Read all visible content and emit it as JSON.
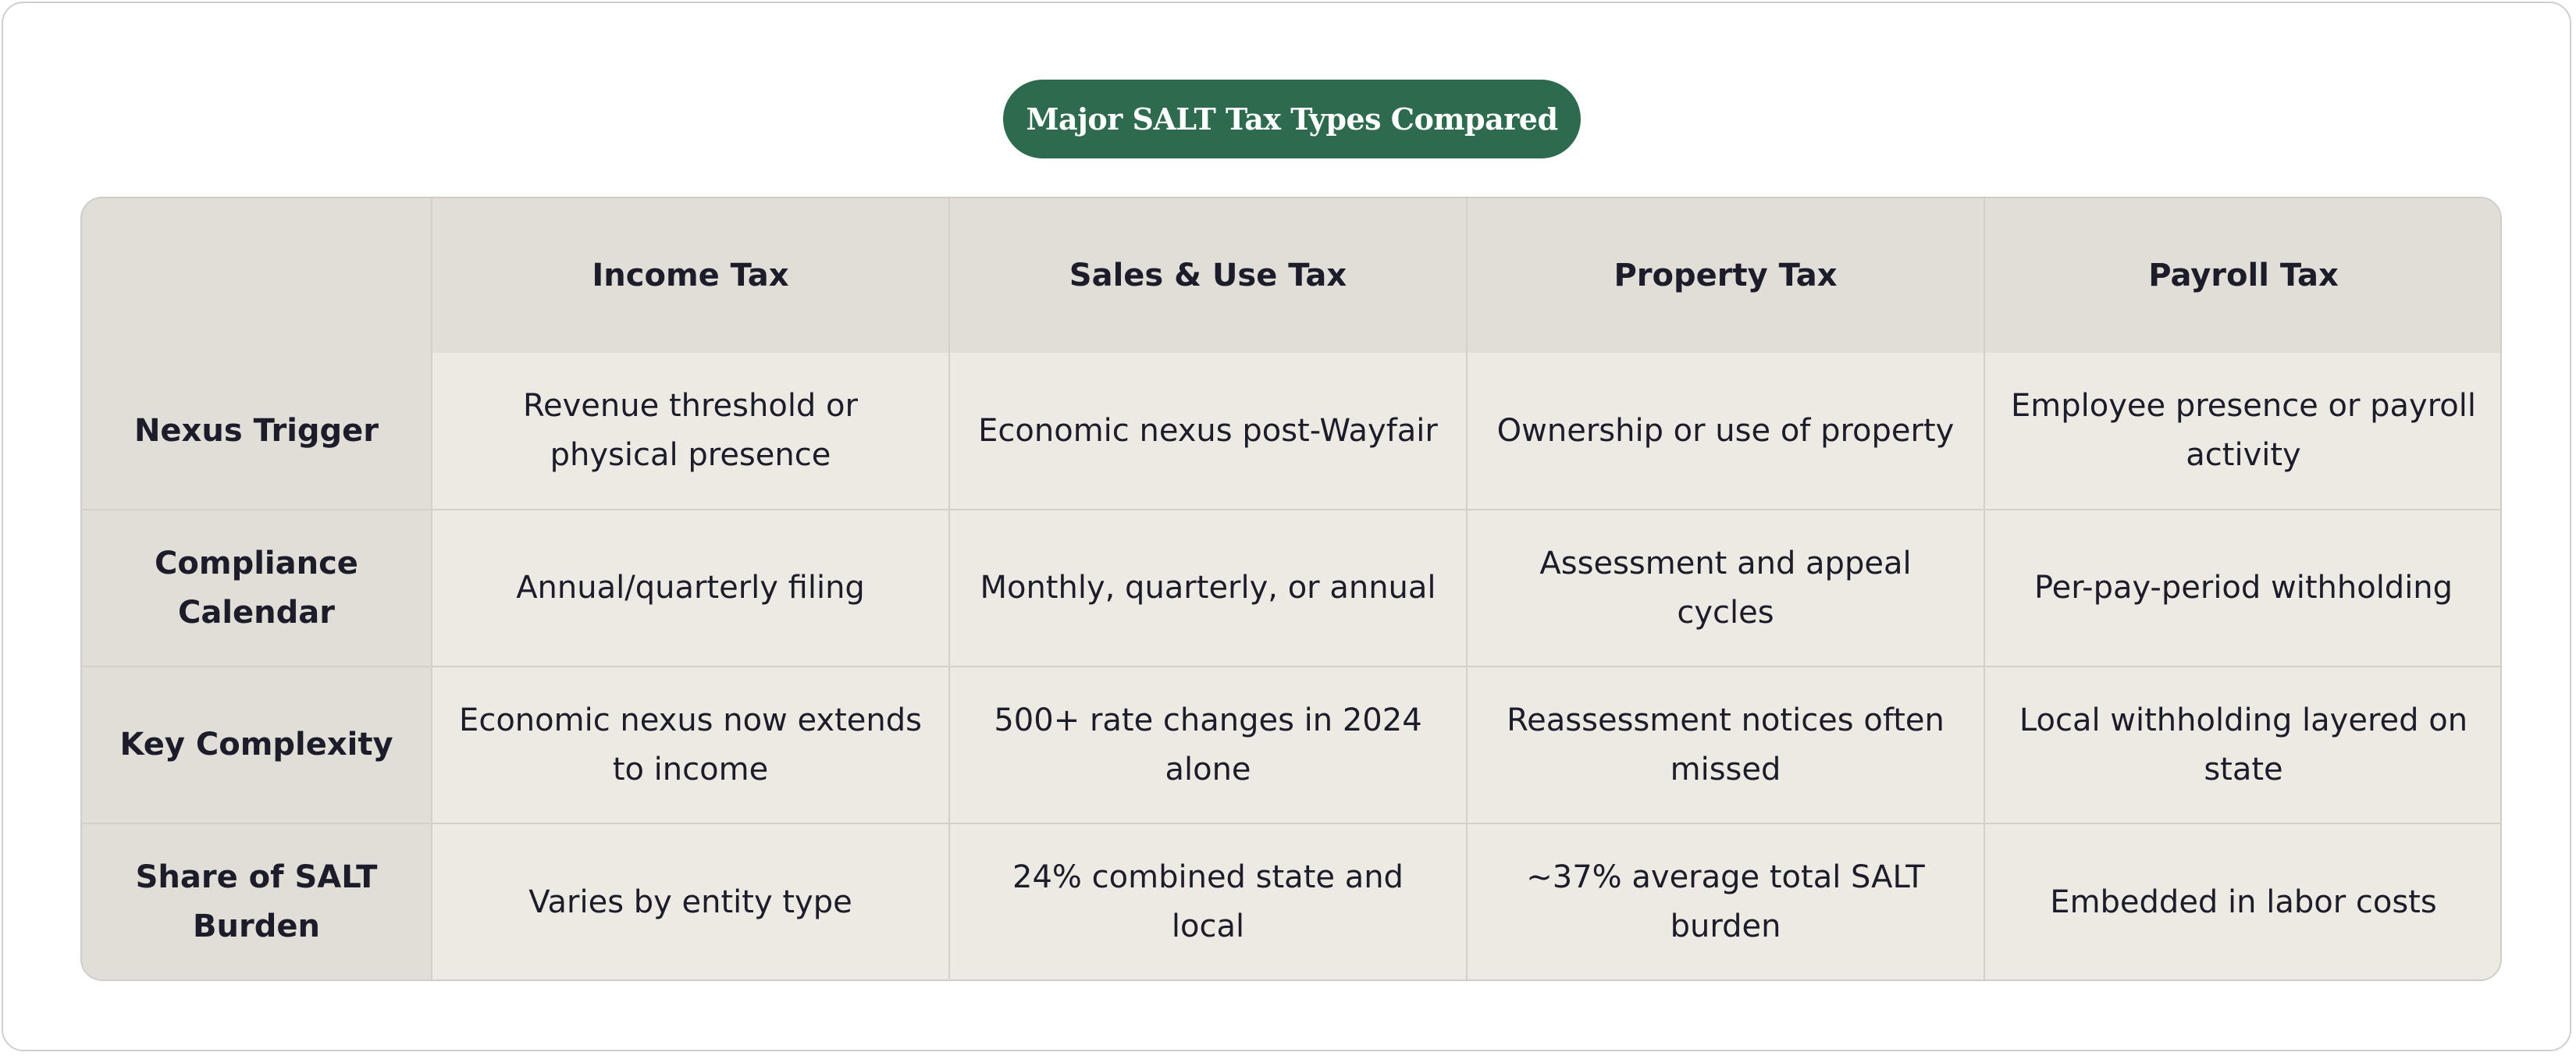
{
  "title": "Major SALT Tax Types Compared",
  "table": {
    "corner": "",
    "columns": [
      "Income Tax",
      "Sales & Use Tax",
      "Property Tax",
      "Payroll Tax"
    ],
    "rows": [
      {
        "label": "Nexus Trigger",
        "cells": [
          "Revenue threshold or physical presence",
          "Economic nexus post-Wayfair",
          "Ownership or use of property",
          "Employee presence or payroll activity"
        ]
      },
      {
        "label": "Compliance Calendar",
        "cells": [
          "Annual/quarterly filing",
          "Monthly, quarterly, or annual",
          "Assessment and appeal cycles",
          "Per-pay-period withholding"
        ]
      },
      {
        "label": "Key Complexity",
        "cells": [
          "Economic nexus now extends to income",
          "500+ rate changes in 2024 alone",
          "Reassessment notices often missed",
          "Local withholding layered on state"
        ]
      },
      {
        "label": "Share of SALT Burden",
        "cells": [
          "Varies by entity type",
          "24% combined state and local",
          "~37% average total SALT burden",
          "Embedded in labor costs"
        ]
      }
    ]
  },
  "colors": {
    "title_background": "#2e6b4e",
    "header_background": "#e1ded8",
    "cell_background": "#edeae4",
    "text": "#1c1c2a"
  }
}
